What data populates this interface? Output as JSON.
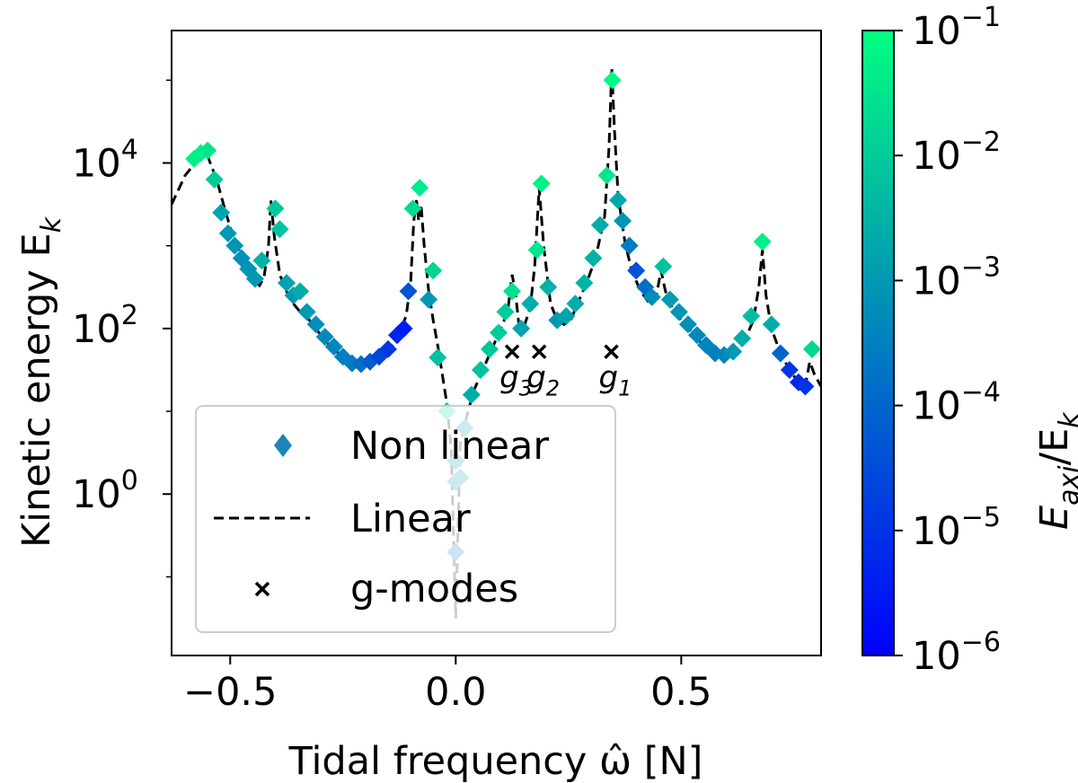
{
  "chart_data": {
    "type": "scatter",
    "xlabel": "Tidal frequency ω̂ [N]",
    "ylabel": "Kinetic energy E",
    "ylabel_sub": "k",
    "xlim": [
      -0.63,
      0.81
    ],
    "ylim_log10": [
      -1.95,
      5.6
    ],
    "x_ticks": [
      {
        "value": -0.5,
        "label": "−0.5"
      },
      {
        "value": 0.0,
        "label": "0.0"
      },
      {
        "value": 0.5,
        "label": "0.5"
      }
    ],
    "y_ticks": [
      {
        "exp": 0,
        "base": "10",
        "power": "0"
      },
      {
        "exp": 2,
        "base": "10",
        "power": "2"
      },
      {
        "exp": 4,
        "base": "10",
        "power": "4"
      }
    ],
    "colorbar": {
      "label_main": "E",
      "label_sub1": "axi",
      "label_slash": "/E",
      "label_sub2": "k",
      "log10_range": [
        -6,
        -1
      ],
      "ticks": [
        {
          "exp": -1,
          "base": "10",
          "power": "−1"
        },
        {
          "exp": -2,
          "base": "10",
          "power": "−2"
        },
        {
          "exp": -3,
          "base": "10",
          "power": "−3"
        },
        {
          "exp": -4,
          "base": "10",
          "power": "−4"
        },
        {
          "exp": -5,
          "base": "10",
          "power": "−5"
        },
        {
          "exp": -6,
          "base": "10",
          "power": "−6"
        }
      ],
      "colors": {
        "low": "#0000ff",
        "high": "#00ff80"
      }
    },
    "legend": {
      "placement": "lower-left",
      "entries": [
        {
          "marker": "diamond",
          "label": "Non linear",
          "color": "#1a86b8"
        },
        {
          "marker": "dashed-line",
          "label": "Linear",
          "color": "#000000"
        },
        {
          "marker": "x",
          "label": "g-modes",
          "color": "#000000"
        }
      ]
    },
    "linear_series": [
      [
        -0.63,
        3.5
      ],
      [
        -0.6,
        3.85
      ],
      [
        -0.57,
        4.05
      ],
      [
        -0.55,
        4.08
      ],
      [
        -0.53,
        3.8
      ],
      [
        -0.51,
        3.4
      ],
      [
        -0.49,
        3.05
      ],
      [
        -0.47,
        2.82
      ],
      [
        -0.45,
        2.6
      ],
      [
        -0.435,
        2.52
      ],
      [
        -0.425,
        2.62
      ],
      [
        -0.415,
        3.0
      ],
      [
        -0.41,
        3.55
      ],
      [
        -0.402,
        3.1
      ],
      [
        -0.39,
        2.65
      ],
      [
        -0.375,
        2.45
      ],
      [
        -0.36,
        2.3
      ],
      [
        -0.345,
        2.2
      ],
      [
        -0.33,
        2.14
      ],
      [
        -0.31,
        2.0
      ],
      [
        -0.29,
        1.85
      ],
      [
        -0.27,
        1.75
      ],
      [
        -0.25,
        1.65
      ],
      [
        -0.23,
        1.6
      ],
      [
        -0.21,
        1.57
      ],
      [
        -0.19,
        1.58
      ],
      [
        -0.17,
        1.63
      ],
      [
        -0.15,
        1.72
      ],
      [
        -0.13,
        1.88
      ],
      [
        -0.11,
        2.15
      ],
      [
        -0.1,
        2.55
      ],
      [
        -0.093,
        3.3
      ],
      [
        -0.087,
        3.55
      ],
      [
        -0.082,
        3.3
      ],
      [
        -0.077,
        3.5
      ],
      [
        -0.07,
        3.0
      ],
      [
        -0.06,
        2.45
      ],
      [
        -0.05,
        2.1
      ],
      [
        -0.04,
        1.8
      ],
      [
        -0.03,
        1.45
      ],
      [
        -0.02,
        1.1
      ],
      [
        -0.01,
        0.55
      ],
      [
        0.0,
        -1.5
      ],
      [
        0.01,
        0.6
      ],
      [
        0.025,
        0.95
      ],
      [
        0.04,
        1.25
      ],
      [
        0.06,
        1.5
      ],
      [
        0.08,
        1.75
      ],
      [
        0.1,
        2.0
      ],
      [
        0.115,
        2.2
      ],
      [
        0.125,
        2.65
      ],
      [
        0.132,
        2.45
      ],
      [
        0.14,
        2.05
      ],
      [
        0.15,
        2.0
      ],
      [
        0.165,
        2.25
      ],
      [
        0.175,
        2.75
      ],
      [
        0.185,
        3.7
      ],
      [
        0.195,
        3.0
      ],
      [
        0.21,
        2.3
      ],
      [
        0.225,
        2.1
      ],
      [
        0.24,
        2.05
      ],
      [
        0.255,
        2.1
      ],
      [
        0.27,
        2.3
      ],
      [
        0.29,
        2.55
      ],
      [
        0.31,
        2.85
      ],
      [
        0.33,
        3.35
      ],
      [
        0.34,
        4.2
      ],
      [
        0.346,
        5.15
      ],
      [
        0.352,
        4.4
      ],
      [
        0.36,
        3.6
      ],
      [
        0.375,
        3.05
      ],
      [
        0.39,
        2.7
      ],
      [
        0.41,
        2.45
      ],
      [
        0.43,
        2.3
      ],
      [
        0.445,
        2.4
      ],
      [
        0.455,
        2.7
      ],
      [
        0.465,
        2.45
      ],
      [
        0.48,
        2.25
      ],
      [
        0.5,
        2.1
      ],
      [
        0.52,
        1.98
      ],
      [
        0.54,
        1.85
      ],
      [
        0.56,
        1.75
      ],
      [
        0.58,
        1.68
      ],
      [
        0.6,
        1.65
      ],
      [
        0.62,
        1.7
      ],
      [
        0.64,
        1.85
      ],
      [
        0.66,
        2.1
      ],
      [
        0.672,
        2.5
      ],
      [
        0.68,
        2.95
      ],
      [
        0.688,
        2.4
      ],
      [
        0.7,
        2.0
      ],
      [
        0.72,
        1.7
      ],
      [
        0.74,
        1.5
      ],
      [
        0.76,
        1.35
      ],
      [
        0.775,
        1.3
      ],
      [
        0.785,
        1.6
      ],
      [
        0.795,
        1.45
      ],
      [
        0.81,
        1.3
      ]
    ],
    "nonlinear_points": [
      [
        -0.58,
        4.05,
        -1.3
      ],
      [
        -0.565,
        4.12,
        -1.3
      ],
      [
        -0.55,
        4.15,
        -1.5
      ],
      [
        -0.535,
        3.8,
        -2.0
      ],
      [
        -0.52,
        3.4,
        -2.8
      ],
      [
        -0.505,
        3.15,
        -3.0
      ],
      [
        -0.49,
        3.0,
        -3.1
      ],
      [
        -0.475,
        2.85,
        -3.2
      ],
      [
        -0.46,
        2.72,
        -3.1
      ],
      [
        -0.445,
        2.6,
        -3.0
      ],
      [
        -0.43,
        2.82,
        -2.5
      ],
      [
        -0.4,
        3.45,
        -2.1
      ],
      [
        -0.39,
        3.2,
        -2.2
      ],
      [
        -0.375,
        2.55,
        -2.8
      ],
      [
        -0.36,
        2.4,
        -3.0
      ],
      [
        -0.345,
        2.45,
        -2.6
      ],
      [
        -0.33,
        2.2,
        -3.0
      ],
      [
        -0.31,
        2.05,
        -3.2
      ],
      [
        -0.29,
        1.9,
        -3.3
      ],
      [
        -0.27,
        1.78,
        -3.4
      ],
      [
        -0.25,
        1.66,
        -3.5
      ],
      [
        -0.23,
        1.58,
        -3.6
      ],
      [
        -0.21,
        1.57,
        -3.8
      ],
      [
        -0.19,
        1.6,
        -4.2
      ],
      [
        -0.17,
        1.66,
        -4.6
      ],
      [
        -0.15,
        1.75,
        -4.9
      ],
      [
        -0.13,
        1.92,
        -5.3
      ],
      [
        -0.115,
        2.0,
        -5.5
      ],
      [
        -0.105,
        2.45,
        -4.4
      ],
      [
        -0.095,
        3.45,
        -1.7
      ],
      [
        -0.08,
        3.7,
        -1.4
      ],
      [
        -0.06,
        2.35,
        -3.0
      ],
      [
        -0.05,
        2.7,
        -1.8
      ],
      [
        -0.04,
        1.65,
        -2.2
      ],
      [
        -0.02,
        1.0,
        -2.0
      ],
      [
        0.0,
        0.4,
        -3.0
      ],
      [
        0.0,
        0.15,
        -3.5
      ],
      [
        0.0,
        -0.7,
        -3.6
      ],
      [
        0.01,
        0.2,
        -3.0
      ],
      [
        0.02,
        0.8,
        -3.1
      ],
      [
        0.035,
        1.2,
        -2.6
      ],
      [
        0.055,
        1.5,
        -2.2
      ],
      [
        0.075,
        1.75,
        -2.1
      ],
      [
        0.095,
        1.95,
        -2.0
      ],
      [
        0.11,
        2.2,
        -2.0
      ],
      [
        0.125,
        2.45,
        -1.6
      ],
      [
        0.145,
        2.0,
        -2.8
      ],
      [
        0.165,
        2.3,
        -2.6
      ],
      [
        0.18,
        2.95,
        -1.5
      ],
      [
        0.19,
        3.75,
        -1.3
      ],
      [
        0.205,
        2.5,
        -2.5
      ],
      [
        0.225,
        2.1,
        -3.0
      ],
      [
        0.245,
        2.15,
        -2.8
      ],
      [
        0.265,
        2.3,
        -2.6
      ],
      [
        0.285,
        2.55,
        -2.5
      ],
      [
        0.305,
        2.85,
        -2.5
      ],
      [
        0.32,
        3.25,
        -2.6
      ],
      [
        0.335,
        3.85,
        -1.5
      ],
      [
        0.347,
        5.0,
        -1.1
      ],
      [
        0.36,
        3.55,
        -2.7
      ],
      [
        0.37,
        3.3,
        -3.1
      ],
      [
        0.385,
        3.0,
        -3.6
      ],
      [
        0.4,
        2.7,
        -4.4
      ],
      [
        0.42,
        2.5,
        -3.8
      ],
      [
        0.435,
        2.38,
        -3.2
      ],
      [
        0.46,
        2.75,
        -2.2
      ],
      [
        0.475,
        2.35,
        -3.0
      ],
      [
        0.495,
        2.2,
        -3.1
      ],
      [
        0.515,
        2.05,
        -3.2
      ],
      [
        0.535,
        1.92,
        -3.3
      ],
      [
        0.555,
        1.8,
        -3.4
      ],
      [
        0.575,
        1.7,
        -3.5
      ],
      [
        0.595,
        1.68,
        -3.4
      ],
      [
        0.615,
        1.72,
        -3.0
      ],
      [
        0.635,
        1.88,
        -2.6
      ],
      [
        0.655,
        2.15,
        -2.3
      ],
      [
        0.68,
        3.05,
        -1.3
      ],
      [
        0.7,
        2.05,
        -2.6
      ],
      [
        0.72,
        1.7,
        -4.0
      ],
      [
        0.74,
        1.5,
        -5.0
      ],
      [
        0.76,
        1.35,
        -5.2
      ],
      [
        0.775,
        1.3,
        -5.0
      ],
      [
        0.79,
        1.75,
        -1.8
      ]
    ],
    "g_modes": [
      {
        "x": 0.125,
        "y_log10": 1.72,
        "label": "g",
        "sub": "3"
      },
      {
        "x": 0.185,
        "y_log10": 1.72,
        "label": "g",
        "sub": "2"
      },
      {
        "x": 0.345,
        "y_log10": 1.72,
        "label": "g",
        "sub": "1"
      }
    ]
  }
}
